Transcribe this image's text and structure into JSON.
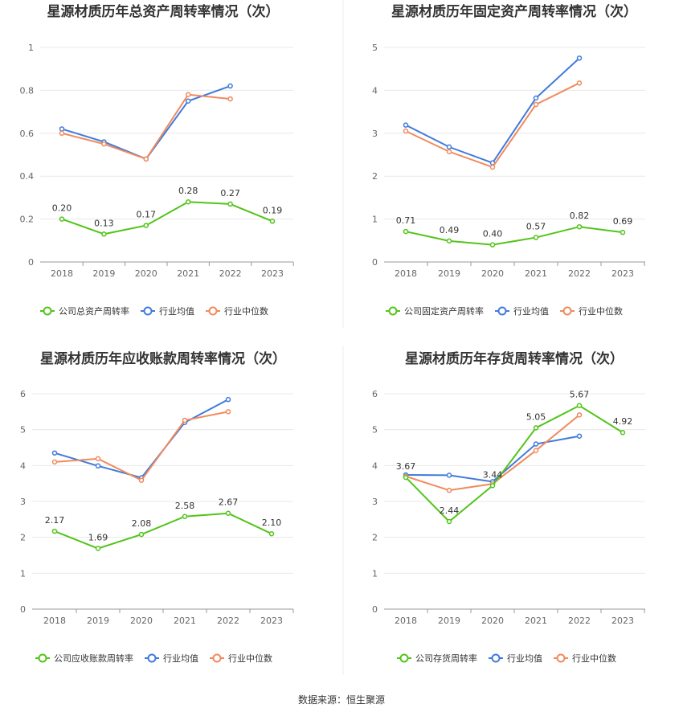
{
  "source_text": "数据来源：恒生聚源",
  "colors": {
    "company": "#52c41a",
    "industry_avg": "#3f7bdc",
    "industry_median": "#f08a5d",
    "grid": "#e8e8e8",
    "axis": "#999999"
  },
  "chart_data": [
    {
      "type": "line",
      "title": "星源材质历年总资产周转率情况（次）",
      "categories": [
        "2018",
        "2019",
        "2020",
        "2021",
        "2022",
        "2023"
      ],
      "ylim": [
        0,
        1
      ],
      "yticks": [
        "0",
        "0.2",
        "0.4",
        "0.6",
        "0.8",
        "1"
      ],
      "ytick_values": [
        0,
        0.2,
        0.4,
        0.6,
        0.8,
        1
      ],
      "series": [
        {
          "name": "公司总资产周转率",
          "role": "company",
          "values": [
            0.2,
            0.13,
            0.17,
            0.28,
            0.27,
            0.19
          ],
          "labels": [
            "0.20",
            "0.13",
            "0.17",
            "0.28",
            "0.27",
            "0.19"
          ]
        },
        {
          "name": "行业均值",
          "role": "industry_avg",
          "values": [
            0.62,
            0.56,
            0.48,
            0.75,
            0.82,
            null
          ]
        },
        {
          "name": "行业中位数",
          "role": "industry_median",
          "values": [
            0.6,
            0.55,
            0.48,
            0.78,
            0.76,
            null
          ]
        }
      ]
    },
    {
      "type": "line",
      "title": "星源材质历年固定资产周转率情况（次）",
      "categories": [
        "2018",
        "2019",
        "2020",
        "2021",
        "2022",
        "2023"
      ],
      "ylim": [
        0,
        5
      ],
      "yticks": [
        "0",
        "1",
        "2",
        "3",
        "4",
        "5"
      ],
      "ytick_values": [
        0,
        1,
        2,
        3,
        4,
        5
      ],
      "series": [
        {
          "name": "公司固定资产周转率",
          "role": "company",
          "values": [
            0.71,
            0.49,
            0.4,
            0.57,
            0.82,
            0.69
          ],
          "labels": [
            "0.71",
            "0.49",
            "0.40",
            "0.57",
            "0.82",
            "0.69"
          ]
        },
        {
          "name": "行业均值",
          "role": "industry_avg",
          "values": [
            3.19,
            2.68,
            2.31,
            3.82,
            4.75,
            null
          ]
        },
        {
          "name": "行业中位数",
          "role": "industry_median",
          "values": [
            3.05,
            2.57,
            2.21,
            3.67,
            4.17,
            null
          ]
        }
      ]
    },
    {
      "type": "line",
      "title": "星源材质历年应收账款周转率情况（次）",
      "categories": [
        "2018",
        "2019",
        "2020",
        "2021",
        "2022",
        "2023"
      ],
      "ylim": [
        0,
        6
      ],
      "yticks": [
        "0",
        "1",
        "2",
        "3",
        "4",
        "5",
        "6"
      ],
      "ytick_values": [
        0,
        1,
        2,
        3,
        4,
        5,
        6
      ],
      "series": [
        {
          "name": "公司应收账款周转率",
          "role": "company",
          "values": [
            2.17,
            1.69,
            2.08,
            2.58,
            2.67,
            2.1
          ],
          "labels": [
            "2.17",
            "1.69",
            "2.08",
            "2.58",
            "2.67",
            "2.10"
          ]
        },
        {
          "name": "行业均值",
          "role": "industry_avg",
          "values": [
            4.35,
            3.99,
            3.66,
            5.2,
            5.84,
            null
          ]
        },
        {
          "name": "行业中位数",
          "role": "industry_median",
          "values": [
            4.1,
            4.19,
            3.59,
            5.26,
            5.5,
            null
          ]
        }
      ]
    },
    {
      "type": "line",
      "title": "星源材质历年存货周转率情况（次）",
      "categories": [
        "2018",
        "2019",
        "2020",
        "2021",
        "2022",
        "2023"
      ],
      "ylim": [
        0,
        6
      ],
      "yticks": [
        "0",
        "1",
        "2",
        "3",
        "4",
        "5",
        "6"
      ],
      "ytick_values": [
        0,
        1,
        2,
        3,
        4,
        5,
        6
      ],
      "series": [
        {
          "name": "公司存货周转率",
          "role": "company",
          "values": [
            3.67,
            2.44,
            3.44,
            5.05,
            5.67,
            4.92
          ],
          "labels": [
            "3.67",
            "2.44",
            "3.44",
            "5.05",
            "5.67",
            "4.92"
          ]
        },
        {
          "name": "行业均值",
          "role": "industry_avg",
          "values": [
            3.74,
            3.73,
            3.55,
            4.6,
            4.82,
            null
          ]
        },
        {
          "name": "行业中位数",
          "role": "industry_median",
          "values": [
            3.7,
            3.31,
            3.49,
            4.42,
            5.41,
            null
          ]
        }
      ]
    }
  ]
}
